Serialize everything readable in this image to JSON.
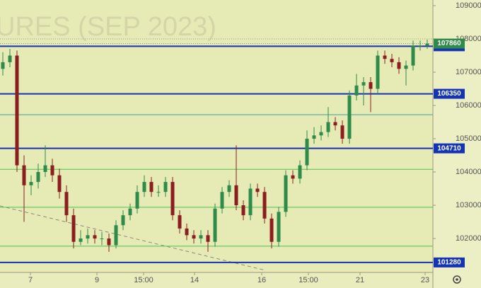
{
  "chart_data": {
    "type": "candlestick",
    "watermark": "URES (SEP 2023)",
    "ylim": [
      100980,
      109170
    ],
    "yticks": [
      102000,
      103000,
      104000,
      105000,
      106000,
      107000,
      108000,
      109000
    ],
    "xlim": [
      -0.4,
      60.8
    ],
    "xticks": [
      {
        "value": 3.9,
        "label": "7"
      },
      {
        "value": 13.3,
        "label": "9"
      },
      {
        "value": 19.9,
        "label": "15:00"
      },
      {
        "value": 27.1,
        "label": "14"
      },
      {
        "value": 36.6,
        "label": "16"
      },
      {
        "value": 43.2,
        "label": "15:00"
      },
      {
        "value": 50.5,
        "label": "21"
      },
      {
        "value": 59.7,
        "label": "23"
      }
    ],
    "up_color": "#2e8b4a",
    "down_color": "#8b1f1f",
    "ohlc": [
      [
        107100,
        107600,
        106900,
        107300
      ],
      [
        107300,
        107700,
        107150,
        107500
      ],
      [
        107500,
        107650,
        104000,
        104200
      ],
      [
        104200,
        104500,
        102500,
        103600
      ],
      [
        103600,
        103900,
        103300,
        103700
      ],
      [
        103700,
        104250,
        103500,
        104000
      ],
      [
        104000,
        104800,
        103850,
        104200
      ],
      [
        104200,
        104400,
        103700,
        103900
      ],
      [
        103900,
        104100,
        103200,
        103400
      ],
      [
        103400,
        103600,
        102500,
        102700
      ],
      [
        102700,
        102900,
        101700,
        101900
      ],
      [
        101900,
        102250,
        101800,
        102000
      ],
      [
        102000,
        102300,
        101850,
        102100
      ],
      [
        102100,
        102250,
        101850,
        102000
      ],
      [
        102000,
        102200,
        101800,
        102000
      ],
      [
        102000,
        102150,
        101600,
        101800
      ],
      [
        101800,
        102550,
        101700,
        102400
      ],
      [
        102400,
        102850,
        102250,
        102700
      ],
      [
        102700,
        103050,
        102550,
        102900
      ],
      [
        102900,
        103600,
        102750,
        103400
      ],
      [
        103400,
        103900,
        103250,
        103700
      ],
      [
        103700,
        103850,
        103250,
        103400
      ],
      [
        103400,
        103600,
        103250,
        103400
      ],
      [
        103400,
        103850,
        103250,
        103700
      ],
      [
        103700,
        103850,
        102550,
        102700
      ],
      [
        102700,
        102850,
        102150,
        102300
      ],
      [
        102300,
        102450,
        101950,
        102100
      ],
      [
        102100,
        102250,
        101850,
        102000
      ],
      [
        102000,
        102250,
        101850,
        102100
      ],
      [
        102100,
        102250,
        101600,
        101900
      ],
      [
        101900,
        103050,
        101750,
        102900
      ],
      [
        102900,
        103550,
        102750,
        103400
      ],
      [
        103400,
        103750,
        103250,
        103600
      ],
      [
        103600,
        104800,
        102850,
        103000
      ],
      [
        103000,
        103150,
        102550,
        102700
      ],
      [
        102700,
        103650,
        102550,
        103500
      ],
      [
        103500,
        103650,
        103250,
        103400
      ],
      [
        103400,
        103550,
        102450,
        102600
      ],
      [
        102600,
        102750,
        101700,
        101900
      ],
      [
        101900,
        102950,
        101750,
        102800
      ],
      [
        102800,
        104050,
        102650,
        103900
      ],
      [
        103900,
        104050,
        103650,
        103800
      ],
      [
        103800,
        104350,
        103650,
        104200
      ],
      [
        104200,
        105250,
        104050,
        105000
      ],
      [
        105000,
        105350,
        104850,
        105100
      ],
      [
        105100,
        105400,
        104950,
        105200
      ],
      [
        105200,
        105950,
        105050,
        105500
      ],
      [
        105500,
        105650,
        105250,
        105400
      ],
      [
        105400,
        105550,
        104850,
        105000
      ],
      [
        105000,
        106450,
        104850,
        106300
      ],
      [
        106300,
        106950,
        106150,
        106600
      ],
      [
        106600,
        106850,
        106000,
        106700
      ],
      [
        106700,
        106850,
        105800,
        106500
      ],
      [
        106500,
        107650,
        106350,
        107500
      ],
      [
        107500,
        107650,
        107250,
        107400
      ],
      [
        107400,
        107550,
        107150,
        107300
      ],
      [
        107300,
        107450,
        106950,
        107100
      ],
      [
        107100,
        107350,
        106600,
        107200
      ],
      [
        107200,
        107950,
        107050,
        107800
      ],
      [
        107800,
        107950,
        107650,
        107800
      ],
      [
        107800,
        107980,
        107700,
        107860
      ]
    ],
    "price_lines": [
      {
        "value": 107780,
        "color": "#1533b5",
        "width": 2,
        "label": true
      },
      {
        "value": 106350,
        "color": "#1533b5",
        "width": 2,
        "label": true
      },
      {
        "value": 104710,
        "color": "#1533b5",
        "width": 2,
        "label": true
      },
      {
        "value": 101280,
        "color": "#1533b5",
        "width": 2,
        "label": true
      },
      {
        "value": 105720,
        "color": "#3aa0a0",
        "width": 1,
        "label": false
      },
      {
        "value": 104080,
        "color": "#4cc050",
        "width": 1,
        "label": false
      },
      {
        "value": 102940,
        "color": "#4cc050",
        "width": 1,
        "label": false
      },
      {
        "value": 101770,
        "color": "#4cc050",
        "width": 1,
        "label": false
      }
    ],
    "last_price": 107860,
    "last_color": "#2e8b4a"
  }
}
